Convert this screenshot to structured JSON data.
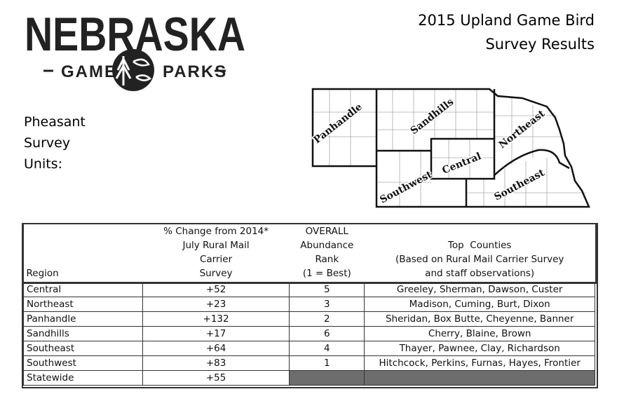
{
  "logo": {
    "name": "NEBRASKA",
    "left": "GAME",
    "right": "PARKS"
  },
  "title": [
    "2015 Upland Game Bird",
    "Survey Results"
  ],
  "map_heading": [
    "Pheasant",
    "Survey",
    "Units:"
  ],
  "map_labels": [
    "Panhandle",
    "Sandhills",
    "Northeast",
    "Central",
    "Southwest",
    "Southeast"
  ],
  "table": {
    "header": [
      [
        "Region"
      ],
      [
        "% Change from 2014*",
        "July Rural Mail",
        "Carrier",
        "Survey"
      ],
      [
        "OVERALL",
        "Abundance",
        "Rank",
        "(1 = Best)"
      ],
      [
        "Top  Counties",
        "(Based on Rural Mail Carrier Survey",
        "and staff observations)"
      ]
    ],
    "rows": [
      [
        "Central",
        "+52",
        "5",
        "Greeley, Sherman, Dawson, Custer"
      ],
      [
        "Northeast",
        "+23",
        "3",
        "Madison, Cuming, Burt, Dixon"
      ],
      [
        "Panhandle",
        "+132",
        "2",
        "Sheridan, Box Butte, Cheyenne, Banner"
      ],
      [
        "Sandhills",
        "+17",
        "6",
        "Cherry, Blaine, Brown"
      ],
      [
        "Southeast",
        "+64",
        "4",
        "Thayer, Pawnee, Clay, Richardson"
      ],
      [
        "Southwest",
        "+83",
        "1",
        "Hitchcock, Perkins, Furnas, Hayes, Frontier"
      ],
      [
        "Statewide",
        "+55"
      ]
    ]
  }
}
